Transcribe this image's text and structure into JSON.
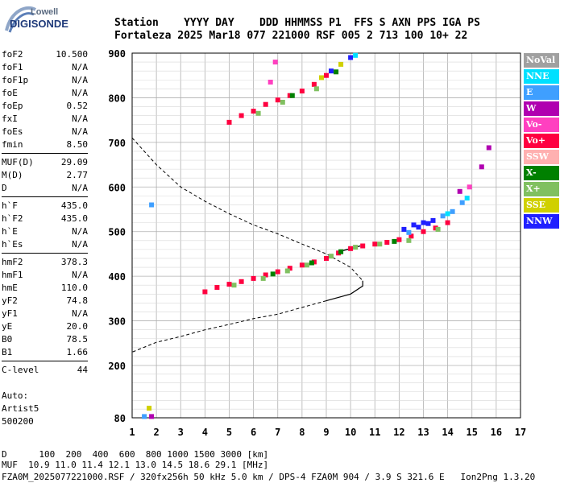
{
  "logo": {
    "top": "Lowell",
    "bottom": "DIGISONDE"
  },
  "header": {
    "line1": "Station    YYYY DAY    DDD HHMMSS P1  FFS S AXN PPS IGA PS",
    "line2": "Fortaleza 2025 Mar18 077 221000 RSF 005 2 713 100 10+ 22"
  },
  "params": [
    {
      "k": "foF2",
      "v": "10.500"
    },
    {
      "k": "foF1",
      "v": "N/A"
    },
    {
      "k": "foF1p",
      "v": "N/A"
    },
    {
      "k": "foE",
      "v": "N/A"
    },
    {
      "k": "foEp",
      "v": "0.52"
    },
    {
      "k": "fxI",
      "v": "N/A"
    },
    {
      "k": "foEs",
      "v": "N/A"
    },
    {
      "k": "fmin",
      "v": "8.50"
    },
    {
      "k": "MUF(D)",
      "v": "29.09"
    },
    {
      "k": "M(D)",
      "v": "2.77"
    },
    {
      "k": "D",
      "v": "N/A"
    },
    {
      "k": "h`F",
      "v": "435.0"
    },
    {
      "k": "h`F2",
      "v": "435.0"
    },
    {
      "k": "h`E",
      "v": "N/A"
    },
    {
      "k": "h`Es",
      "v": "N/A"
    },
    {
      "k": "hmF2",
      "v": "378.3"
    },
    {
      "k": "hmF1",
      "v": "N/A"
    },
    {
      "k": "hmE",
      "v": "110.0"
    },
    {
      "k": "yF2",
      "v": "74.8"
    },
    {
      "k": "yF1",
      "v": "N/A"
    },
    {
      "k": "yE",
      "v": "20.0"
    },
    {
      "k": "B0",
      "v": "78.5"
    },
    {
      "k": "B1",
      "v": "1.66"
    },
    {
      "k": "C-level",
      "v": "44"
    }
  ],
  "auto": [
    "Auto:",
    "Artist5",
    "500200"
  ],
  "legend": [
    {
      "label": "NoVal",
      "color": "#a0a0a0"
    },
    {
      "label": "NNE",
      "color": "#00e0ff"
    },
    {
      "label": "E",
      "color": "#3f9fff"
    },
    {
      "label": "W",
      "color": "#b000b0"
    },
    {
      "label": "Vo-",
      "color": "#ff40c0"
    },
    {
      "label": "Vo+",
      "color": "#ff0040"
    },
    {
      "label": "SSW",
      "color": "#ffb0b0"
    },
    {
      "label": "X-",
      "color": "#008000"
    },
    {
      "label": "X+",
      "color": "#80c060"
    },
    {
      "label": "SSE",
      "color": "#d0d000"
    },
    {
      "label": "NNW",
      "color": "#2020ff"
    }
  ],
  "footer": {
    "line1": "D      100  200  400  600  800 1000 1500 3000 [km]",
    "line2": "MUF  10.9 11.0 11.4 12.1 13.0 14.5 18.6 29.1 [MHz]",
    "line3": "FZA0M_2025077221000.RSF / 320fx256h 50 kHz 5.0 km / DPS-4 FZA0M 904 / 3.9 S 321.6 E   Ion2Png 1.3.20"
  },
  "chart_data": {
    "type": "scatter",
    "xlim": [
      1,
      17
    ],
    "ylim": [
      80,
      900
    ],
    "x_ticks": [
      1,
      2,
      3,
      4,
      5,
      6,
      7,
      8,
      9,
      10,
      11,
      12,
      13,
      14,
      15,
      16,
      17
    ],
    "y_ticks": [
      80,
      200,
      300,
      400,
      500,
      600,
      700,
      800,
      900
    ],
    "grid": true,
    "legend_position": "right",
    "series": [
      {
        "name": "Vo+",
        "color": "#ff0040",
        "points": [
          [
            4.0,
            365
          ],
          [
            4.5,
            375
          ],
          [
            5.0,
            382
          ],
          [
            5.5,
            388
          ],
          [
            6.0,
            395
          ],
          [
            6.5,
            403
          ],
          [
            7.0,
            410
          ],
          [
            7.5,
            418
          ],
          [
            8.0,
            425
          ],
          [
            8.5,
            432
          ],
          [
            9.0,
            440
          ],
          [
            9.5,
            452
          ],
          [
            10.0,
            462
          ],
          [
            10.5,
            468
          ],
          [
            11.0,
            472
          ],
          [
            11.5,
            476
          ],
          [
            12.0,
            482
          ],
          [
            12.5,
            490
          ],
          [
            13.0,
            500
          ],
          [
            13.5,
            508
          ],
          [
            14.0,
            520
          ],
          [
            5.0,
            745
          ],
          [
            5.5,
            760
          ],
          [
            6.0,
            770
          ],
          [
            6.5,
            785
          ],
          [
            7.0,
            795
          ],
          [
            7.5,
            805
          ],
          [
            8.0,
            815
          ],
          [
            8.5,
            830
          ],
          [
            9.0,
            850
          ]
        ]
      },
      {
        "name": "X+",
        "color": "#80c060",
        "points": [
          [
            5.2,
            380
          ],
          [
            6.4,
            395
          ],
          [
            7.4,
            412
          ],
          [
            8.2,
            425
          ],
          [
            9.2,
            445
          ],
          [
            10.2,
            465
          ],
          [
            11.2,
            472
          ],
          [
            12.4,
            480
          ],
          [
            13.6,
            505
          ],
          [
            6.2,
            765
          ],
          [
            7.2,
            790
          ],
          [
            8.6,
            820
          ]
        ]
      },
      {
        "name": "X-",
        "color": "#008000",
        "points": [
          [
            6.8,
            405
          ],
          [
            8.4,
            430
          ],
          [
            9.6,
            455
          ],
          [
            11.8,
            478
          ],
          [
            7.6,
            805
          ],
          [
            9.4,
            858
          ]
        ]
      },
      {
        "name": "NNW",
        "color": "#2020ff",
        "points": [
          [
            12.2,
            505
          ],
          [
            12.6,
            515
          ],
          [
            13.0,
            520
          ],
          [
            13.4,
            525
          ],
          [
            12.8,
            510
          ],
          [
            13.2,
            518
          ],
          [
            9.2,
            860
          ],
          [
            10.0,
            890
          ]
        ]
      },
      {
        "name": "E",
        "color": "#3f9fff",
        "points": [
          [
            13.8,
            535
          ],
          [
            14.2,
            545
          ],
          [
            14.6,
            565
          ],
          [
            12.4,
            498
          ],
          [
            1.8,
            560
          ],
          [
            1.5,
            83
          ]
        ]
      },
      {
        "name": "NNE",
        "color": "#00e0ff",
        "points": [
          [
            14.0,
            540
          ],
          [
            14.8,
            575
          ],
          [
            10.2,
            895
          ]
        ]
      },
      {
        "name": "W",
        "color": "#b000b0",
        "points": [
          [
            15.4,
            645
          ],
          [
            15.7,
            688
          ],
          [
            14.5,
            590
          ],
          [
            1.8,
            83
          ]
        ]
      },
      {
        "name": "Vo-",
        "color": "#ff40c0",
        "points": [
          [
            6.9,
            880
          ],
          [
            6.7,
            835
          ],
          [
            14.9,
            600
          ]
        ]
      },
      {
        "name": "SSE",
        "color": "#d0d000",
        "points": [
          [
            9.6,
            875
          ],
          [
            8.8,
            845
          ],
          [
            1.7,
            102
          ]
        ]
      }
    ],
    "profile_dashed": [
      [
        1.0,
        710
      ],
      [
        2.0,
        650
      ],
      [
        3.0,
        600
      ],
      [
        4.0,
        568
      ],
      [
        5.0,
        540
      ],
      [
        6.0,
        515
      ],
      [
        7.0,
        495
      ],
      [
        8.0,
        472
      ],
      [
        9.0,
        450
      ],
      [
        10.0,
        420
      ],
      [
        10.5,
        390
      ]
    ],
    "profile_solid": [
      [
        10.5,
        390
      ],
      [
        10.5,
        378
      ],
      [
        10.0,
        360
      ],
      [
        9.0,
        345
      ]
    ],
    "profile_lower_dashed": [
      [
        9.0,
        345
      ],
      [
        8.0,
        330
      ],
      [
        7.0,
        315
      ],
      [
        6.0,
        305
      ],
      [
        5.0,
        292
      ],
      [
        4.0,
        280
      ],
      [
        3.0,
        265
      ],
      [
        2.0,
        252
      ],
      [
        1.0,
        230
      ]
    ],
    "trace_h": [
      [
        9.5,
        455
      ],
      [
        10.0,
        462
      ],
      [
        10.4,
        468
      ]
    ]
  }
}
